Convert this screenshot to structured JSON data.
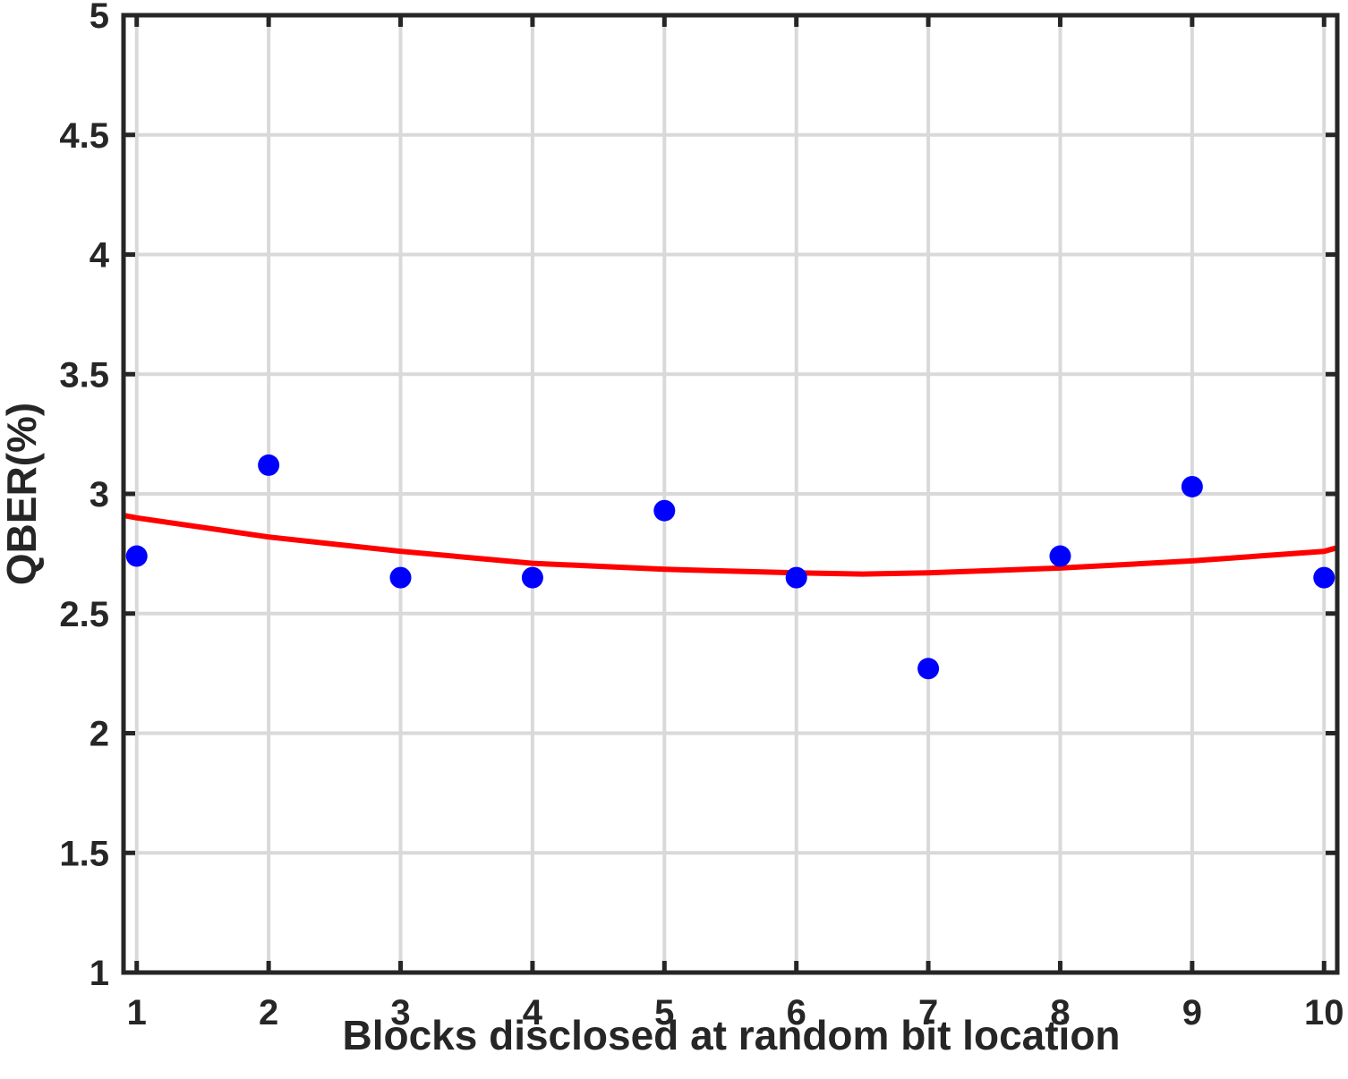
{
  "chart_data": {
    "type": "scatter",
    "xlabel": "Blocks disclosed at random bit location",
    "ylabel": "QBER(%)",
    "xlim": [
      0.9,
      10.1
    ],
    "ylim": [
      1,
      5
    ],
    "x_ticks": [
      1,
      2,
      3,
      4,
      5,
      6,
      7,
      8,
      9,
      10
    ],
    "y_ticks": [
      1,
      1.5,
      2,
      2.5,
      3,
      3.5,
      4,
      4.5,
      5
    ],
    "y_tick_labels": [
      "1",
      "1.5",
      "2",
      "2.5",
      "3",
      "3.5",
      "4",
      "4.5",
      "5"
    ],
    "grid": true,
    "series": [
      {
        "kind": "points",
        "color": "#0000ff",
        "x": [
          1,
          2,
          3,
          4,
          5,
          6,
          7,
          8,
          9,
          10
        ],
        "y": [
          2.74,
          3.12,
          2.65,
          2.65,
          2.93,
          2.65,
          2.27,
          2.74,
          3.03,
          2.65
        ]
      },
      {
        "kind": "fit-curve",
        "color": "#ff0000",
        "x": [
          0.9,
          1,
          2,
          3,
          4,
          5,
          6,
          6.5,
          7,
          8,
          9,
          10,
          10.1
        ],
        "y": [
          2.91,
          2.9,
          2.82,
          2.76,
          2.71,
          2.685,
          2.67,
          2.665,
          2.67,
          2.69,
          2.72,
          2.76,
          2.775
        ]
      }
    ],
    "colors": {
      "grid": "#d9d9d9",
      "axis": "#262626",
      "points": "#0000ff",
      "fit": "#ff0000"
    }
  }
}
